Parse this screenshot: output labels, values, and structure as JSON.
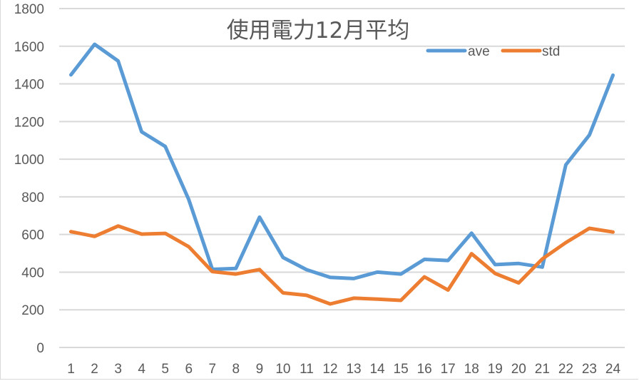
{
  "chart_data": {
    "type": "line",
    "title": "使用電力12月平均",
    "xlabel": "",
    "ylabel": "",
    "categories": [
      "1",
      "2",
      "3",
      "4",
      "5",
      "6",
      "7",
      "8",
      "9",
      "10",
      "11",
      "12",
      "13",
      "14",
      "15",
      "16",
      "17",
      "18",
      "19",
      "20",
      "21",
      "22",
      "23",
      "24"
    ],
    "series": [
      {
        "name": "ave",
        "color": "#5b9bd5",
        "values": [
          1448,
          1610,
          1522,
          1145,
          1068,
          785,
          415,
          420,
          692,
          478,
          413,
          372,
          366,
          400,
          390,
          468,
          462,
          607,
          440,
          446,
          427,
          970,
          1128,
          1446
        ]
      },
      {
        "name": "std",
        "color": "#ed7d31",
        "values": [
          615,
          590,
          645,
          602,
          606,
          535,
          403,
          390,
          414,
          290,
          277,
          231,
          262,
          257,
          250,
          375,
          305,
          498,
          393,
          343,
          470,
          557,
          633,
          613
        ]
      }
    ],
    "ylim": [
      0,
      1800
    ],
    "yticks": [
      0,
      200,
      400,
      600,
      800,
      1000,
      1200,
      1400,
      1600,
      1800
    ],
    "grid": true,
    "legend_position": "top-right"
  }
}
